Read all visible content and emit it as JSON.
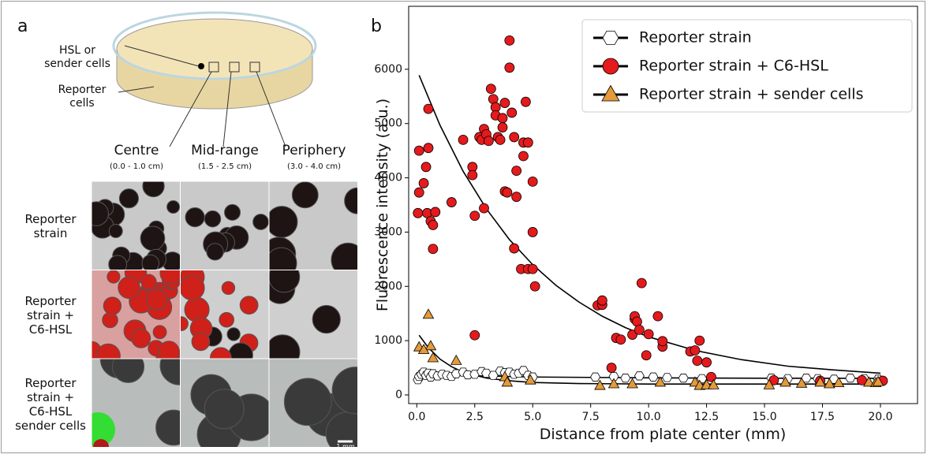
{
  "panel_a": {
    "label": "a",
    "dish_labels": {
      "source": [
        "HSL or",
        "sender cells"
      ],
      "reporter": [
        "Reporter",
        "cells"
      ]
    },
    "columns": [
      {
        "title": "Centre",
        "range": "(0.0 - 1.0 cm)"
      },
      {
        "title": "Mid-range",
        "range": "(1.5 - 2.5 cm)"
      },
      {
        "title": "Periphery",
        "range": "(3.0 - 4.0 cm)"
      }
    ],
    "row_labels": [
      [
        "Reporter",
        "strain"
      ],
      [
        "Reporter",
        "strain +",
        "C6-HSL"
      ],
      [
        "Reporter",
        "strain +",
        "C6-HSL",
        "sender cells"
      ]
    ],
    "scale_bar": "1 mm"
  },
  "chart_data": {
    "type": "scatter",
    "label": "b",
    "xlabel": "Distance from plate center (mm)",
    "ylabel": "Fluorescence intensity (a.u.)",
    "xlim": [
      -0.35,
      21.6
    ],
    "ylim": [
      -160,
      7160
    ],
    "xticks": [
      {
        "value": 0,
        "label": "0.0"
      },
      {
        "value": 2.5,
        "label": "2.5"
      },
      {
        "value": 5,
        "label": "5.0"
      },
      {
        "value": 7.5,
        "label": "7.5"
      },
      {
        "value": 10,
        "label": "10.0"
      },
      {
        "value": 12.5,
        "label": "12.5"
      },
      {
        "value": 15,
        "label": "15.0"
      },
      {
        "value": 17.5,
        "label": "17.5"
      },
      {
        "value": 20,
        "label": "20.0"
      }
    ],
    "yticks": [
      0,
      1000,
      2000,
      3000,
      4000,
      5000,
      6000
    ],
    "grid": false,
    "legend": "upper right",
    "series": [
      {
        "name": "Reporter strain",
        "color": "#ffffff",
        "marker": "hexagon",
        "x": [
          0.05,
          0.1,
          0.2,
          0.3,
          0.4,
          0.5,
          0.6,
          0.7,
          0.9,
          1.1,
          1.3,
          1.5,
          1.7,
          2.0,
          2.2,
          2.5,
          2.8,
          3.0,
          3.3,
          3.6,
          3.8,
          4.0,
          4.2,
          4.4,
          4.6,
          4.8,
          5.0,
          7.7,
          8.5,
          9.0,
          9.6,
          10.2,
          10.8,
          11.5,
          12.3,
          15.3,
          16.0,
          16.8,
          17.3,
          18.0,
          18.7,
          19.3,
          19.9
        ],
        "values": [
          280,
          340,
          380,
          420,
          360,
          400,
          330,
          390,
          350,
          380,
          360,
          340,
          390,
          420,
          370,
          380,
          430,
          400,
          360,
          440,
          410,
          420,
          380,
          400,
          450,
          360,
          330,
          330,
          340,
          310,
          350,
          330,
          320,
          310,
          300,
          310,
          300,
          310,
          300,
          290,
          310,
          300,
          290
        ]
      },
      {
        "name": "Reporter strain + C6-HSL",
        "color": "#e41a1c",
        "marker": "circle",
        "x": [
          0.1,
          0.1,
          0.05,
          0.3,
          0.4,
          0.5,
          0.5,
          0.45,
          0.6,
          0.7,
          0.7,
          0.8,
          1.5,
          2.0,
          2.4,
          2.4,
          2.5,
          2.5,
          2.7,
          2.8,
          2.9,
          2.9,
          3.0,
          3.1,
          3.2,
          3.3,
          3.4,
          3.4,
          3.5,
          3.6,
          3.7,
          3.7,
          3.8,
          3.8,
          3.9,
          4.0,
          4.0,
          4.1,
          4.2,
          4.2,
          4.3,
          4.3,
          4.5,
          4.6,
          4.7,
          4.6,
          4.8,
          4.8,
          5.0,
          5.0,
          5.0,
          5.1,
          7.8,
          8.0,
          8.0,
          8.4,
          8.6,
          8.8,
          9.3,
          9.4,
          9.4,
          9.5,
          9.6,
          9.7,
          9.9,
          10.0,
          10.4,
          10.6,
          10.6,
          11.8,
          12.0,
          12.1,
          12.2,
          12.5,
          12.7,
          15.4,
          17.4,
          19.2,
          20.1
        ],
        "values": [
          4500,
          3730,
          3350,
          3900,
          4200,
          5270,
          4550,
          3350,
          3200,
          3130,
          2690,
          3370,
          3550,
          4700,
          4200,
          4050,
          3300,
          1100,
          4750,
          4700,
          4900,
          3440,
          4800,
          4680,
          5640,
          5450,
          5300,
          5150,
          4750,
          4700,
          5100,
          4930,
          3750,
          5380,
          3730,
          6530,
          6030,
          5200,
          2700,
          4750,
          4130,
          3650,
          2320,
          4650,
          5400,
          4400,
          2320,
          4650,
          3000,
          2320,
          3930,
          2000,
          1650,
          1660,
          1740,
          500,
          1050,
          1020,
          1110,
          1400,
          1450,
          1350,
          1200,
          2060,
          730,
          1120,
          1450,
          890,
          990,
          800,
          820,
          630,
          1000,
          600,
          330,
          270,
          260,
          270,
          260
        ]
      },
      {
        "name": "Reporter strain + sender cells",
        "color": "#e59a3a",
        "marker": "triangle",
        "x": [
          0.1,
          0.5,
          0.6,
          0.7,
          0.3,
          1.7,
          3.8,
          3.9,
          4.9,
          7.9,
          8.5,
          9.3,
          10.5,
          12.0,
          12.2,
          12.5,
          12.8,
          15.2,
          15.9,
          16.6,
          17.4,
          17.8,
          18.2,
          19.5,
          19.8,
          19.9
        ],
        "values": [
          880,
          1480,
          900,
          680,
          830,
          630,
          330,
          230,
          270,
          170,
          200,
          200,
          230,
          230,
          170,
          180,
          180,
          180,
          230,
          210,
          230,
          200,
          220,
          230,
          220,
          240
        ]
      }
    ],
    "fits": [
      {
        "color": "#000000",
        "x": [
          0.1,
          2,
          5,
          10,
          15,
          20
        ],
        "values": [
          390,
          360,
          330,
          315,
          308,
          305
        ]
      },
      {
        "color": "#000000",
        "x": [
          0.1,
          1,
          2,
          3,
          4,
          5,
          6,
          7,
          8,
          9,
          10,
          12,
          14,
          16,
          18,
          20
        ],
        "values": [
          5890,
          4970,
          4120,
          3430,
          2860,
          2400,
          2020,
          1710,
          1450,
          1240,
          1070,
          820,
          650,
          530,
          460,
          400
        ]
      },
      {
        "color": "#000000",
        "x": [
          0.1,
          0.5,
          1,
          1.5,
          2,
          3,
          4,
          5,
          7,
          10,
          15,
          20
        ],
        "values": [
          1100,
          870,
          660,
          520,
          420,
          310,
          260,
          230,
          210,
          200,
          200,
          200
        ]
      }
    ]
  }
}
